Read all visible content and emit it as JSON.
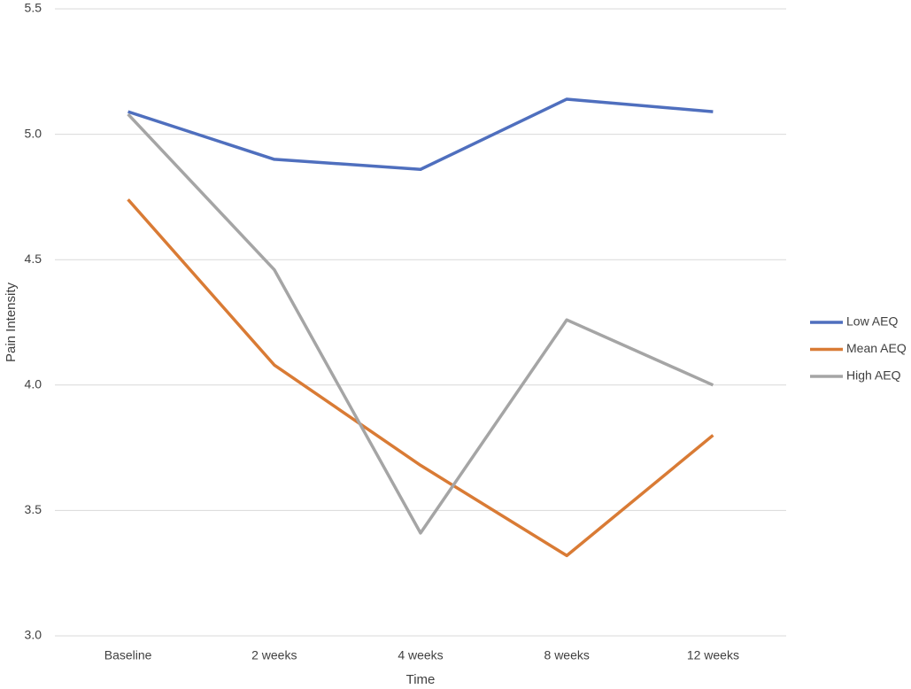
{
  "chart_data": {
    "type": "line",
    "x_label": "Time",
    "y_label": "Pain Intensity",
    "categories": [
      "Baseline",
      "2 weeks",
      "4 weeks",
      "8 weeks",
      "12 weeks"
    ],
    "series": [
      {
        "name": "Low AEQ",
        "color": "#4f6fbe",
        "values": [
          5.09,
          4.9,
          4.86,
          5.14,
          5.09
        ]
      },
      {
        "name": "Mean AEQ",
        "color": "#d97b35",
        "values": [
          4.74,
          4.08,
          3.68,
          3.32,
          3.8
        ]
      },
      {
        "name": "High AEQ",
        "color": "#a5a5a5",
        "values": [
          5.08,
          4.46,
          3.41,
          4.26,
          4.0
        ]
      }
    ],
    "ylim": [
      3.0,
      5.5
    ],
    "yticks": [
      {
        "value": 3,
        "label": "3.0"
      },
      3.5,
      {
        "value": 4,
        "label": "4.0"
      },
      4.5,
      {
        "value": 5,
        "label": "5.0"
      },
      5.5
    ],
    "grid": true,
    "legend": "right"
  }
}
